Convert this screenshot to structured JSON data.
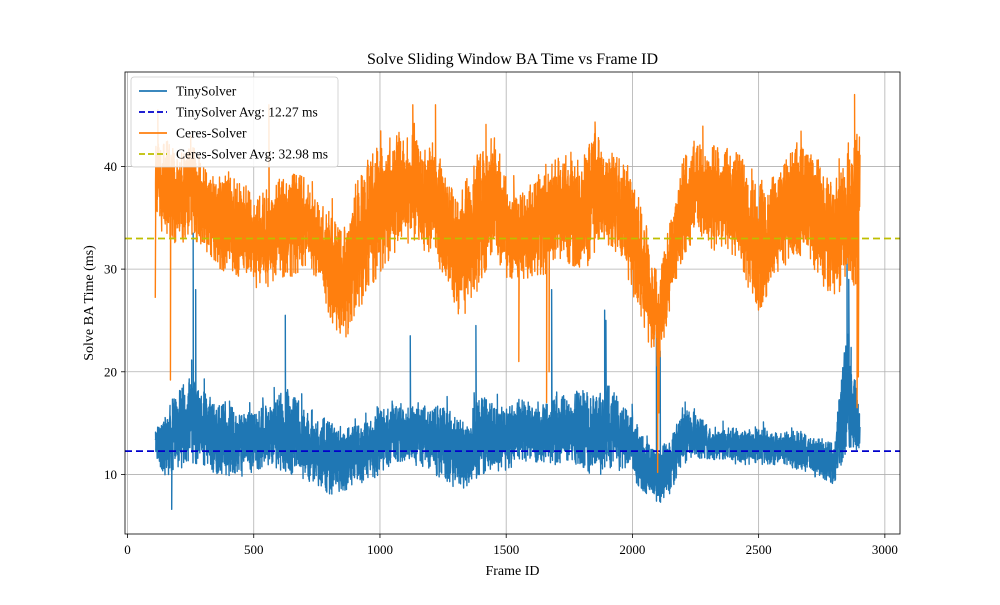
{
  "chart_data": {
    "type": "line",
    "title": "Solve Sliding Window BA Time vs Frame ID",
    "xlabel": "Frame ID",
    "ylabel": "Solve BA Time (ms)",
    "xlim": [
      -10,
      3060
    ],
    "ylim": [
      4.2,
      49.2
    ],
    "xticks": [
      0,
      500,
      1000,
      1500,
      2000,
      2500,
      3000
    ],
    "yticks": [
      10,
      20,
      30,
      40
    ],
    "grid": true,
    "legend_position": "upper-left",
    "series": [
      {
        "name": "TinySolver",
        "color": "#1f77b4",
        "style": "solid",
        "approx_envelope": {
          "x": [
            110,
            150,
            200,
            250,
            300,
            350,
            400,
            450,
            500,
            550,
            600,
            650,
            700,
            750,
            800,
            850,
            900,
            950,
            1000,
            1050,
            1100,
            1150,
            1200,
            1250,
            1300,
            1350,
            1400,
            1450,
            1500,
            1550,
            1600,
            1650,
            1700,
            1750,
            1800,
            1850,
            1900,
            1950,
            2000,
            2050,
            2100,
            2150,
            2200,
            2250,
            2300,
            2350,
            2400,
            2450,
            2500,
            2550,
            2600,
            2650,
            2700,
            2750,
            2800,
            2850,
            2900
          ],
          "low": [
            11,
            9,
            9.5,
            10,
            10,
            9,
            9,
            9,
            9.5,
            10,
            9.5,
            9,
            8.5,
            8,
            7.2,
            7.2,
            8,
            8.5,
            9,
            10.5,
            10.5,
            10,
            9.5,
            8.5,
            7.5,
            8,
            9,
            9.5,
            9.5,
            10.5,
            10.5,
            10.5,
            10,
            10.5,
            9.5,
            8.5,
            9.5,
            9.5,
            8.5,
            7.5,
            6.2,
            7.5,
            10,
            11,
            11,
            11,
            10.5,
            10.5,
            10.5,
            10.5,
            10.5,
            10,
            9.5,
            9,
            8.5,
            11,
            11.5
          ],
          "high": [
            15,
            17,
            19,
            21,
            19,
            19,
            17,
            17,
            17,
            17.5,
            19,
            19,
            17.5,
            17,
            16,
            15.5,
            15.5,
            16,
            17,
            18,
            17,
            18,
            17,
            18,
            16.5,
            16.5,
            19,
            17.5,
            17.5,
            18.5,
            17.5,
            17.5,
            18.5,
            18.5,
            19.5,
            18.5,
            20,
            18,
            16.5,
            14,
            13,
            14.5,
            17.5,
            17,
            15,
            15,
            15,
            15,
            15,
            14.5,
            14.5,
            15,
            14,
            14,
            13.5,
            27,
            16
          ]
        },
        "spikes": [
          [
            175,
            6.6
          ],
          [
            260,
            33.5
          ],
          [
            270,
            28
          ],
          [
            625,
            25.5
          ],
          [
            1120,
            23.5
          ],
          [
            1380,
            24.5
          ],
          [
            1680,
            28
          ],
          [
            1890,
            26
          ],
          [
            1895,
            25
          ],
          [
            2095,
            24.5
          ],
          [
            2110,
            22
          ],
          [
            2850,
            34.2
          ],
          [
            2857,
            29
          ]
        ]
      },
      {
        "name": "TinySolver Avg: 12.27 ms",
        "color": "#0000cc",
        "style": "dashed",
        "value": 12.27
      },
      {
        "name": "Ceres-Solver",
        "color": "#ff7f0e",
        "style": "solid",
        "approx_envelope": {
          "x": [
            110,
            150,
            200,
            250,
            300,
            350,
            400,
            450,
            500,
            550,
            600,
            650,
            700,
            750,
            800,
            850,
            900,
            950,
            1000,
            1050,
            1100,
            1150,
            1200,
            1250,
            1300,
            1350,
            1400,
            1450,
            1500,
            1550,
            1600,
            1650,
            1700,
            1750,
            1800,
            1850,
            1900,
            1950,
            2000,
            2050,
            2100,
            2150,
            2200,
            2250,
            2300,
            2350,
            2400,
            2450,
            2500,
            2550,
            2600,
            2650,
            2700,
            2750,
            2800,
            2850,
            2900
          ],
          "low": [
            33,
            32,
            31,
            32,
            31,
            29,
            28,
            28,
            27,
            27,
            28,
            28,
            29,
            28,
            24,
            21.5,
            23,
            26,
            28,
            30,
            31,
            31,
            30,
            28,
            24,
            24,
            27,
            30,
            28,
            28,
            28,
            28,
            30,
            29,
            28,
            30,
            31,
            30,
            26,
            22,
            19,
            25,
            30,
            32,
            30,
            31,
            30,
            27,
            24,
            27,
            29,
            30,
            29,
            27,
            25,
            27,
            26
          ],
          "high": [
            44,
            44,
            42,
            44,
            41,
            40,
            41,
            40,
            38,
            39,
            40,
            41,
            40,
            38,
            37,
            35,
            40,
            43,
            44,
            45,
            45,
            44,
            43,
            42,
            38,
            41,
            44,
            45,
            40,
            38,
            40,
            41,
            42,
            43,
            42,
            45,
            43,
            42,
            40,
            37,
            30,
            36,
            42,
            44,
            44,
            43,
            43,
            42,
            40,
            41,
            42,
            44,
            43,
            42,
            40,
            44,
            46
          ]
        },
        "spikes": [
          [
            110,
            27.2
          ],
          [
            120,
            45.5
          ],
          [
            170,
            19.2
          ],
          [
            250,
            43
          ],
          [
            560,
            46
          ],
          [
            1130,
            46
          ],
          [
            1220,
            46
          ],
          [
            1550,
            21
          ],
          [
            1660,
            17
          ],
          [
            1670,
            20
          ],
          [
            2100,
            10.2
          ],
          [
            2105,
            16
          ],
          [
            2880,
            47
          ],
          [
            2890,
            16.5
          ],
          [
            2895,
            19.5
          ]
        ]
      },
      {
        "name": "Ceres-Solver Avg: 32.98 ms",
        "color": "#bfbf00",
        "style": "dashed",
        "value": 32.98
      }
    ]
  }
}
